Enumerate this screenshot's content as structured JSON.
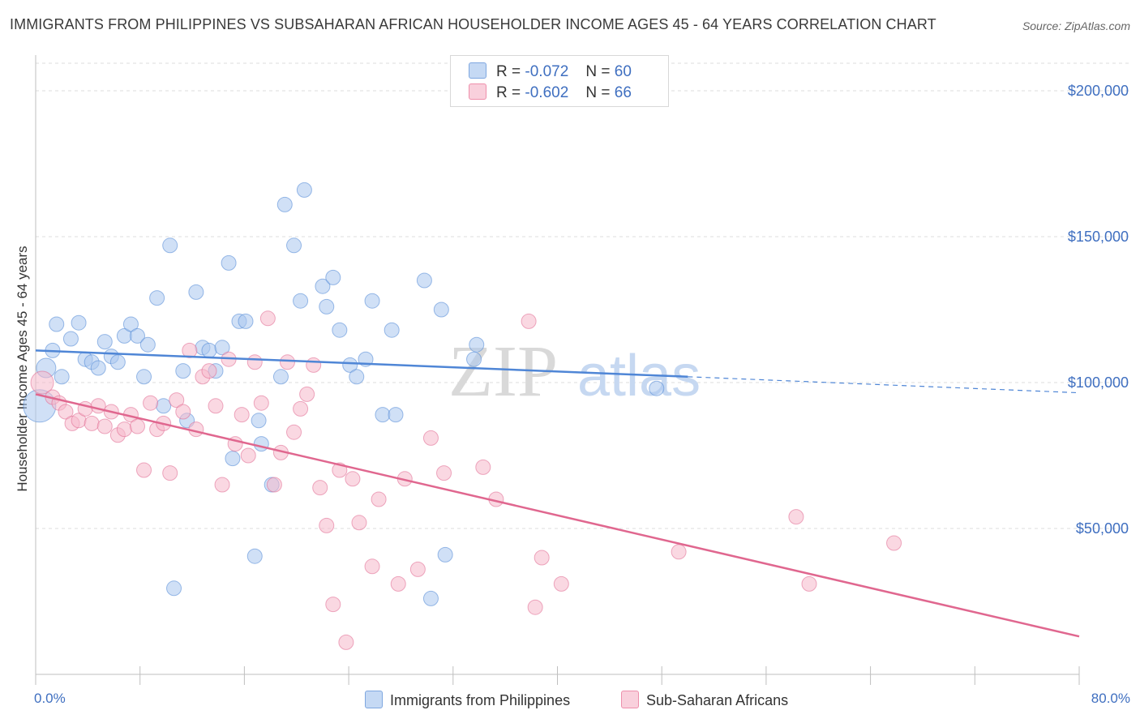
{
  "title": "IMMIGRANTS FROM PHILIPPINES VS SUBSAHARAN AFRICAN HOUSEHOLDER INCOME AGES 45 - 64 YEARS CORRELATION CHART",
  "source": "Source: ZipAtlas.com",
  "watermark": {
    "zip": "ZIP",
    "atlas": "atlas"
  },
  "stats": [
    {
      "r_label": "R =",
      "r_value": "-0.072",
      "n_label": "N =",
      "n_value": "60",
      "color": "#a9c6ee"
    },
    {
      "r_label": "R =",
      "r_value": "-0.602",
      "n_label": "N =",
      "n_value": "66",
      "color": "#f6b8cb"
    }
  ],
  "legend": [
    {
      "label": "Immigrants from Philippines",
      "color": "#a9c6ee"
    },
    {
      "label": "Sub-Saharan Africans",
      "color": "#f6b8cb"
    }
  ],
  "chart_data": {
    "type": "scatter",
    "title": "IMMIGRANTS FROM PHILIPPINES VS SUBSAHARAN AFRICAN HOUSEHOLDER INCOME AGES 45 - 64 YEARS CORRELATION CHART",
    "xlabel": "",
    "ylabel": "Householder Income Ages 45 - 64 years",
    "xlim": [
      0,
      80
    ],
    "ylim": [
      0,
      205000
    ],
    "x_tick_labels": [
      "0.0%",
      "80.0%"
    ],
    "y_ticks": [
      50000,
      100000,
      150000,
      200000
    ],
    "y_tick_labels": [
      "$50,000",
      "$100,000",
      "$150,000",
      "$200,000"
    ],
    "grid": true,
    "legend_position": "bottom",
    "series": [
      {
        "name": "Immigrants from Philippines",
        "color": "#4f86d6",
        "fill": "#a9c6ee",
        "trend": {
          "x": [
            0,
            50
          ],
          "y": [
            111000,
            102000
          ],
          "dashed_to": [
            80,
            96500
          ]
        },
        "points": [
          [
            0.3,
            92000
          ],
          [
            0.8,
            105000
          ],
          [
            1.3,
            111000
          ],
          [
            1.6,
            120000
          ],
          [
            2.0,
            102000
          ],
          [
            2.7,
            115000
          ],
          [
            3.3,
            120500
          ],
          [
            3.8,
            108000
          ],
          [
            4.3,
            107000
          ],
          [
            4.8,
            105000
          ],
          [
            5.3,
            114000
          ],
          [
            5.8,
            109000
          ],
          [
            6.3,
            107000
          ],
          [
            6.8,
            116000
          ],
          [
            7.3,
            120000
          ],
          [
            7.8,
            116000
          ],
          [
            8.3,
            102000
          ],
          [
            8.6,
            113000
          ],
          [
            9.3,
            129000
          ],
          [
            9.8,
            92000
          ],
          [
            10.3,
            147000
          ],
          [
            10.6,
            29500
          ],
          [
            11.3,
            104000
          ],
          [
            11.6,
            87000
          ],
          [
            12.3,
            131000
          ],
          [
            12.8,
            112000
          ],
          [
            13.3,
            111000
          ],
          [
            13.8,
            104000
          ],
          [
            14.3,
            112000
          ],
          [
            14.8,
            141000
          ],
          [
            15.1,
            74000
          ],
          [
            15.6,
            121000
          ],
          [
            16.1,
            121000
          ],
          [
            16.8,
            40500
          ],
          [
            17.1,
            87000
          ],
          [
            17.3,
            79000
          ],
          [
            18.1,
            65000
          ],
          [
            18.8,
            102000
          ],
          [
            19.1,
            161000
          ],
          [
            19.8,
            147000
          ],
          [
            20.3,
            128000
          ],
          [
            20.6,
            166000
          ],
          [
            22.0,
            133000
          ],
          [
            22.3,
            126000
          ],
          [
            22.8,
            136000
          ],
          [
            23.3,
            118000
          ],
          [
            24.1,
            106000
          ],
          [
            24.6,
            102000
          ],
          [
            25.3,
            108000
          ],
          [
            25.8,
            128000
          ],
          [
            26.6,
            89000
          ],
          [
            27.3,
            118000
          ],
          [
            27.6,
            89000
          ],
          [
            29.8,
            135000
          ],
          [
            30.3,
            26000
          ],
          [
            31.1,
            125000
          ],
          [
            31.4,
            41000
          ],
          [
            33.8,
            113000
          ],
          [
            33.6,
            108000
          ],
          [
            47.6,
            98000
          ]
        ]
      },
      {
        "name": "Sub-Saharan Africans",
        "color": "#e0678f",
        "fill": "#f6b8cb",
        "trend": {
          "x": [
            0,
            80
          ],
          "y": [
            96000,
            13000
          ]
        },
        "points": [
          [
            0.5,
            100000
          ],
          [
            1.3,
            95000
          ],
          [
            1.8,
            93000
          ],
          [
            2.3,
            90000
          ],
          [
            2.8,
            86000
          ],
          [
            3.3,
            87000
          ],
          [
            3.8,
            91000
          ],
          [
            4.3,
            86000
          ],
          [
            4.8,
            92000
          ],
          [
            5.3,
            85000
          ],
          [
            5.8,
            90000
          ],
          [
            6.3,
            82000
          ],
          [
            6.8,
            84000
          ],
          [
            7.3,
            89000
          ],
          [
            7.8,
            85000
          ],
          [
            8.3,
            70000
          ],
          [
            8.8,
            93000
          ],
          [
            9.3,
            84000
          ],
          [
            9.8,
            86000
          ],
          [
            10.3,
            69000
          ],
          [
            10.8,
            94000
          ],
          [
            11.3,
            90000
          ],
          [
            11.8,
            111000
          ],
          [
            12.3,
            84000
          ],
          [
            12.8,
            102000
          ],
          [
            13.3,
            104000
          ],
          [
            13.8,
            92000
          ],
          [
            14.3,
            65000
          ],
          [
            14.8,
            108000
          ],
          [
            15.3,
            79000
          ],
          [
            15.8,
            89000
          ],
          [
            16.3,
            75000
          ],
          [
            16.8,
            107000
          ],
          [
            17.3,
            93000
          ],
          [
            17.8,
            122000
          ],
          [
            18.3,
            65000
          ],
          [
            18.8,
            76000
          ],
          [
            19.3,
            107000
          ],
          [
            19.8,
            83000
          ],
          [
            20.3,
            91000
          ],
          [
            20.8,
            96000
          ],
          [
            21.3,
            106000
          ],
          [
            21.8,
            64000
          ],
          [
            22.3,
            51000
          ],
          [
            22.8,
            24000
          ],
          [
            23.3,
            70000
          ],
          [
            23.8,
            11000
          ],
          [
            24.3,
            67000
          ],
          [
            24.8,
            52000
          ],
          [
            25.8,
            37000
          ],
          [
            26.3,
            60000
          ],
          [
            27.8,
            31000
          ],
          [
            28.3,
            67000
          ],
          [
            29.3,
            36000
          ],
          [
            30.3,
            81000
          ],
          [
            31.3,
            69000
          ],
          [
            34.3,
            71000
          ],
          [
            35.3,
            60000
          ],
          [
            37.8,
            121000
          ],
          [
            38.3,
            23000
          ],
          [
            38.8,
            40000
          ],
          [
            40.3,
            31000
          ],
          [
            49.3,
            42000
          ],
          [
            58.3,
            54000
          ],
          [
            59.3,
            31000
          ],
          [
            65.8,
            45000
          ]
        ]
      }
    ]
  }
}
